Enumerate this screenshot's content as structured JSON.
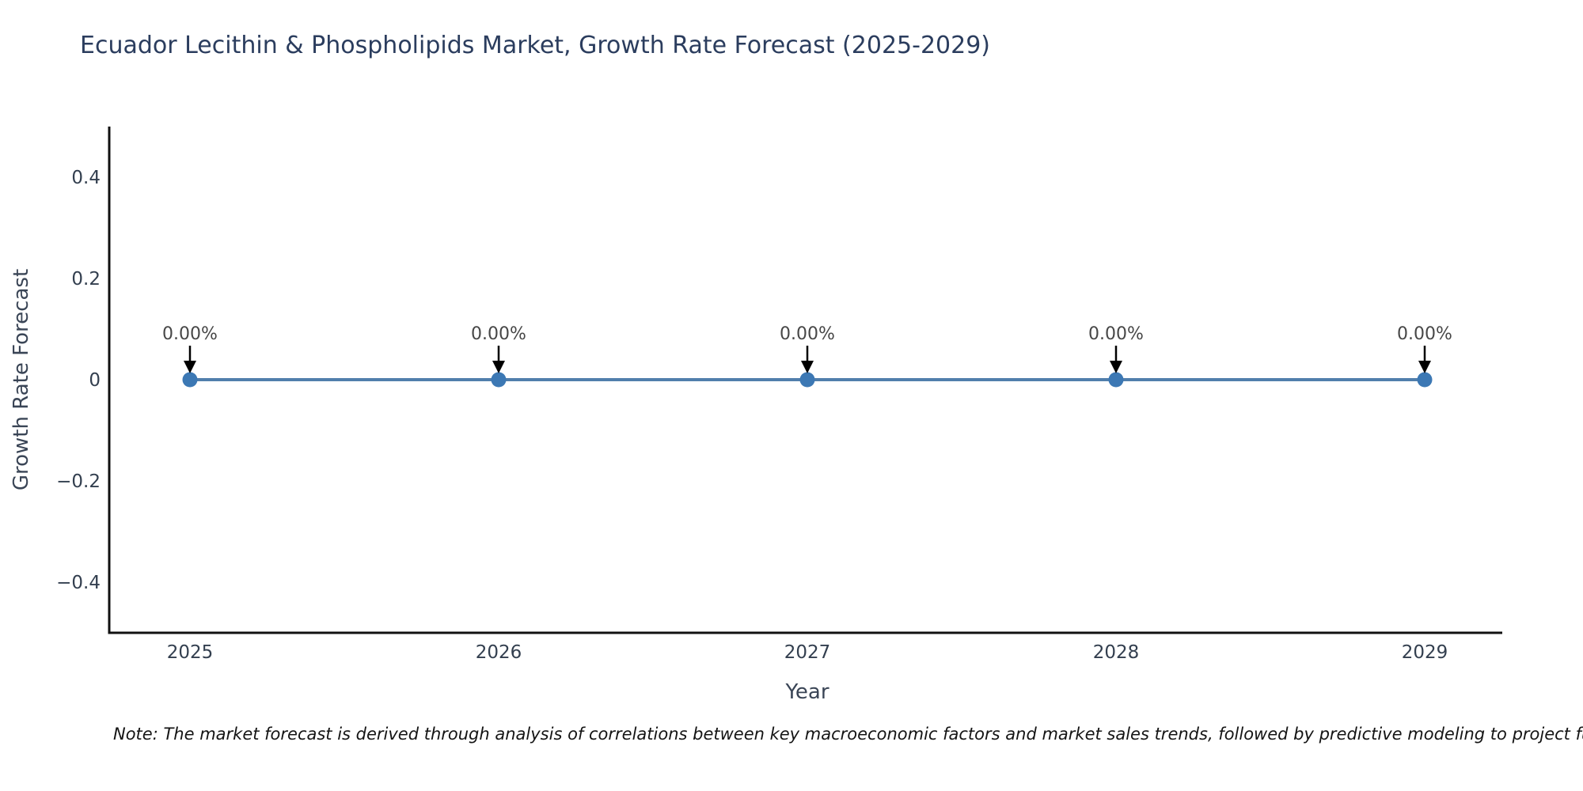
{
  "title": "Ecuador Lecithin & Phospholipids Market, Growth Rate Forecast (2025-2029)",
  "footnote": "Note: The market forecast is derived through analysis of correlations between key macroeconomic factors and market sales trends, followed by predictive modeling to project future sa",
  "chart_data": {
    "type": "line",
    "title": "Ecuador Lecithin & Phospholipids Market, Growth Rate Forecast (2025-2029)",
    "xlabel": "Year",
    "ylabel": "Growth Rate Forecast",
    "x": [
      2025,
      2026,
      2027,
      2028,
      2029
    ],
    "categories": [
      "2025",
      "2026",
      "2027",
      "2028",
      "2029"
    ],
    "values": [
      0,
      0,
      0,
      0,
      0
    ],
    "point_labels": [
      "0.00%",
      "0.00%",
      "0.00%",
      "0.00%",
      "0.00%"
    ],
    "ylim": [
      -0.5,
      0.5
    ],
    "y_ticks": [
      {
        "value": 0.4,
        "label": "0.4"
      },
      {
        "value": 0.2,
        "label": "0.2"
      },
      {
        "value": 0,
        "label": "0"
      },
      {
        "value": -0.2,
        "label": "−0.2"
      },
      {
        "value": -0.4,
        "label": "−0.4"
      }
    ],
    "grid": false,
    "legend_position": "none",
    "colors": {
      "line": "#517FAC",
      "marker": "#3C78B4",
      "arrow": "#000000",
      "annotation_text": "#474747",
      "axis": "#111111",
      "tick_text": "#333f4f"
    }
  }
}
